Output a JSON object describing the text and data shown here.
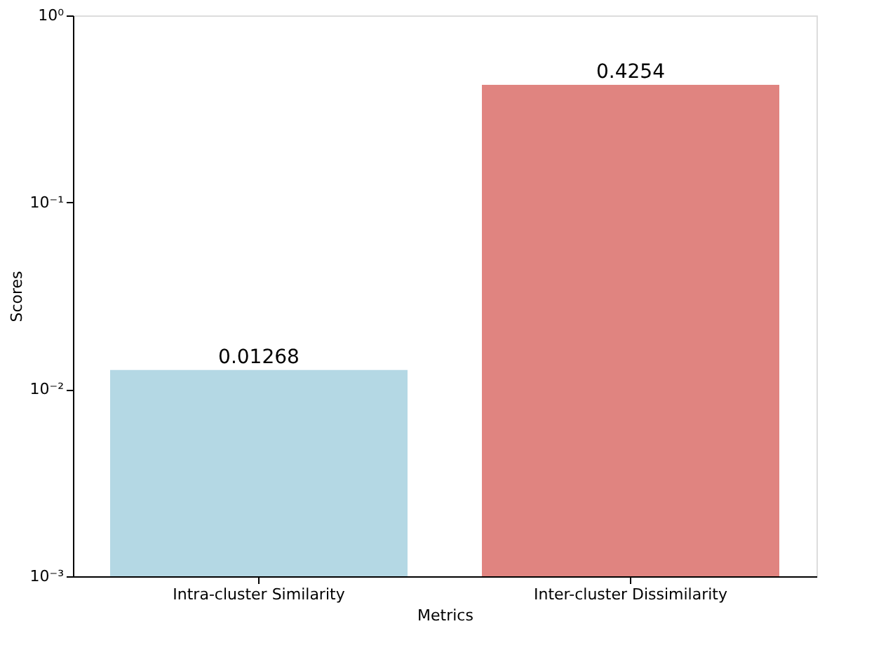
{
  "chart_data": {
    "type": "bar",
    "xlabel": "Metrics",
    "ylabel": "Scores",
    "categories": [
      "Intra-cluster Similarity",
      "Inter-cluster Dissimilarity"
    ],
    "values": [
      0.01268,
      0.4254
    ],
    "colors": [
      "#b4d8e4",
      "#e08480"
    ],
    "log": "y",
    "ylim": [
      0.001,
      1
    ],
    "yticks": [
      {
        "value": 0.001,
        "label": "10⁻³"
      },
      {
        "value": 0.01,
        "label": "10⁻²"
      },
      {
        "value": 0.1,
        "label": "10⁻¹"
      },
      {
        "value": 1,
        "label": "10⁰"
      }
    ],
    "data_labels": true,
    "grid": false,
    "legend": false
  }
}
